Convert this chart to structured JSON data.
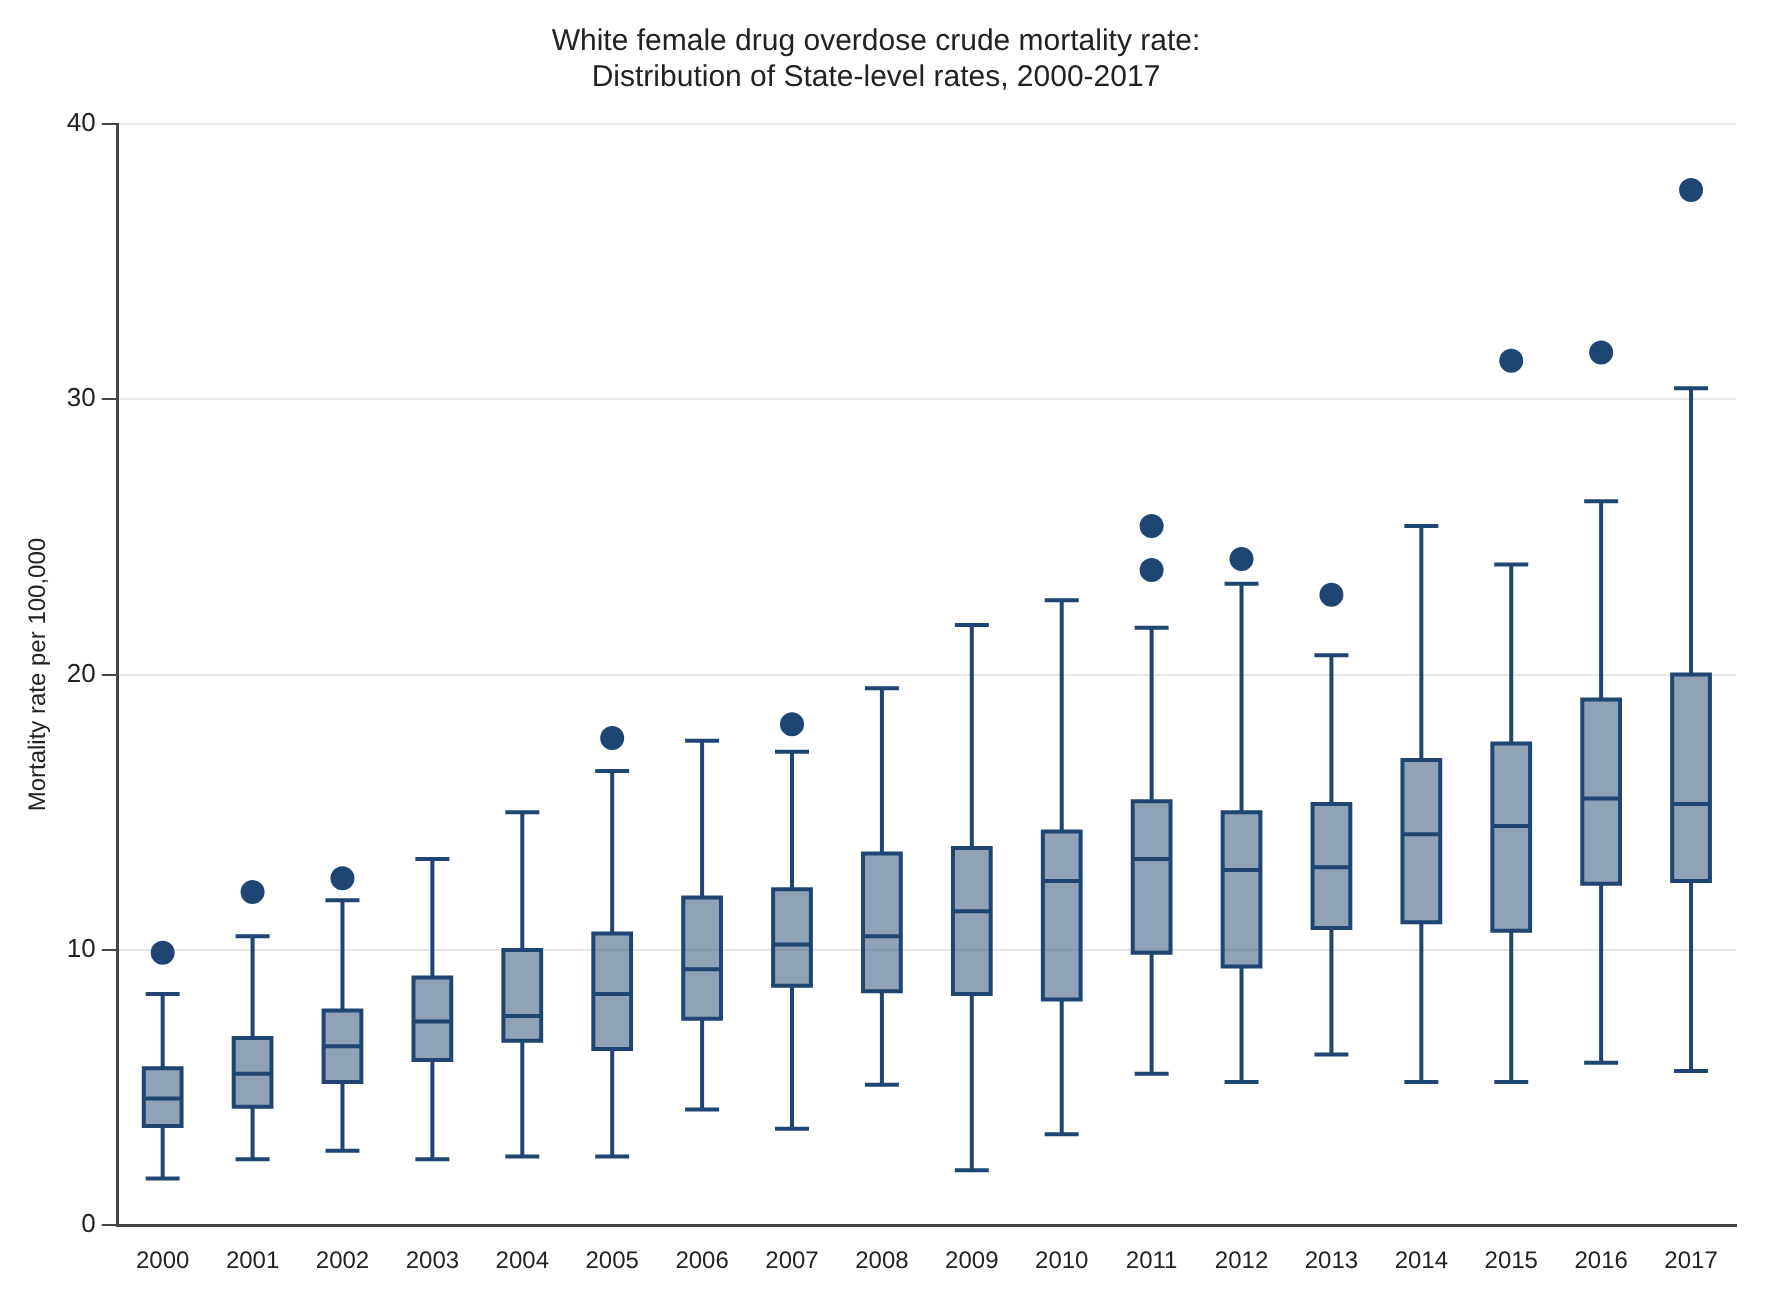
{
  "chart_data": {
    "type": "box",
    "title": "White female drug overdose crude mortality rate:",
    "subtitle": "Distribution of State-level rates, 2000-2017",
    "ylabel": "Mortality rate per 100,000",
    "categories": [
      "2000",
      "2001",
      "2002",
      "2003",
      "2004",
      "2005",
      "2006",
      "2007",
      "2008",
      "2009",
      "2010",
      "2011",
      "2012",
      "2013",
      "2014",
      "2015",
      "2016",
      "2017"
    ],
    "boxes": [
      {
        "low": 1.7,
        "q1": 3.6,
        "median": 4.6,
        "q3": 5.7,
        "high": 8.4,
        "outliers": [
          9.9
        ]
      },
      {
        "low": 2.4,
        "q1": 4.3,
        "median": 5.5,
        "q3": 6.8,
        "high": 10.5,
        "outliers": [
          12.1
        ]
      },
      {
        "low": 2.7,
        "q1": 5.2,
        "median": 6.5,
        "q3": 7.8,
        "high": 11.8,
        "outliers": [
          12.6
        ]
      },
      {
        "low": 2.4,
        "q1": 6.0,
        "median": 7.4,
        "q3": 9.0,
        "high": 13.3
      },
      {
        "low": 2.5,
        "q1": 6.7,
        "median": 7.6,
        "q3": 10.0,
        "high": 15.0
      },
      {
        "low": 2.5,
        "q1": 6.4,
        "median": 8.4,
        "q3": 10.6,
        "high": 16.5,
        "outliers": [
          17.7
        ]
      },
      {
        "low": 4.2,
        "q1": 7.5,
        "median": 9.3,
        "q3": 11.9,
        "high": 17.6
      },
      {
        "low": 3.5,
        "q1": 8.7,
        "median": 10.2,
        "q3": 12.2,
        "high": 17.2,
        "outliers": [
          18.2
        ]
      },
      {
        "low": 5.1,
        "q1": 8.5,
        "median": 10.5,
        "q3": 13.5,
        "high": 19.5
      },
      {
        "low": 2.0,
        "q1": 8.4,
        "median": 11.4,
        "q3": 13.7,
        "high": 21.8
      },
      {
        "low": 3.3,
        "q1": 8.2,
        "median": 12.5,
        "q3": 14.3,
        "high": 22.7
      },
      {
        "low": 5.5,
        "q1": 9.9,
        "median": 13.3,
        "q3": 15.4,
        "high": 21.7,
        "outliers": [
          23.8,
          25.4
        ]
      },
      {
        "low": 5.2,
        "q1": 9.4,
        "median": 12.9,
        "q3": 15.0,
        "high": 23.3,
        "outliers": [
          24.2
        ]
      },
      {
        "low": 6.2,
        "q1": 10.8,
        "median": 13.0,
        "q3": 15.3,
        "high": 20.7,
        "outliers": [
          22.9
        ]
      },
      {
        "low": 5.2,
        "q1": 11.0,
        "median": 14.2,
        "q3": 16.9,
        "high": 25.4
      },
      {
        "low": 5.2,
        "q1": 10.7,
        "median": 14.5,
        "q3": 17.5,
        "high": 24.0,
        "outliers": [
          31.4
        ]
      },
      {
        "low": 5.9,
        "q1": 12.4,
        "median": 15.5,
        "q3": 19.1,
        "high": 26.3,
        "outliers": [
          31.7
        ]
      },
      {
        "low": 5.6,
        "q1": 12.5,
        "median": 15.3,
        "q3": 20.0,
        "high": 30.4,
        "outliers": [
          37.6
        ]
      }
    ],
    "color": "#1f4672",
    "ylim": [
      0,
      40
    ],
    "yticks": [
      0,
      10,
      20,
      30,
      40
    ],
    "grid": "y"
  }
}
